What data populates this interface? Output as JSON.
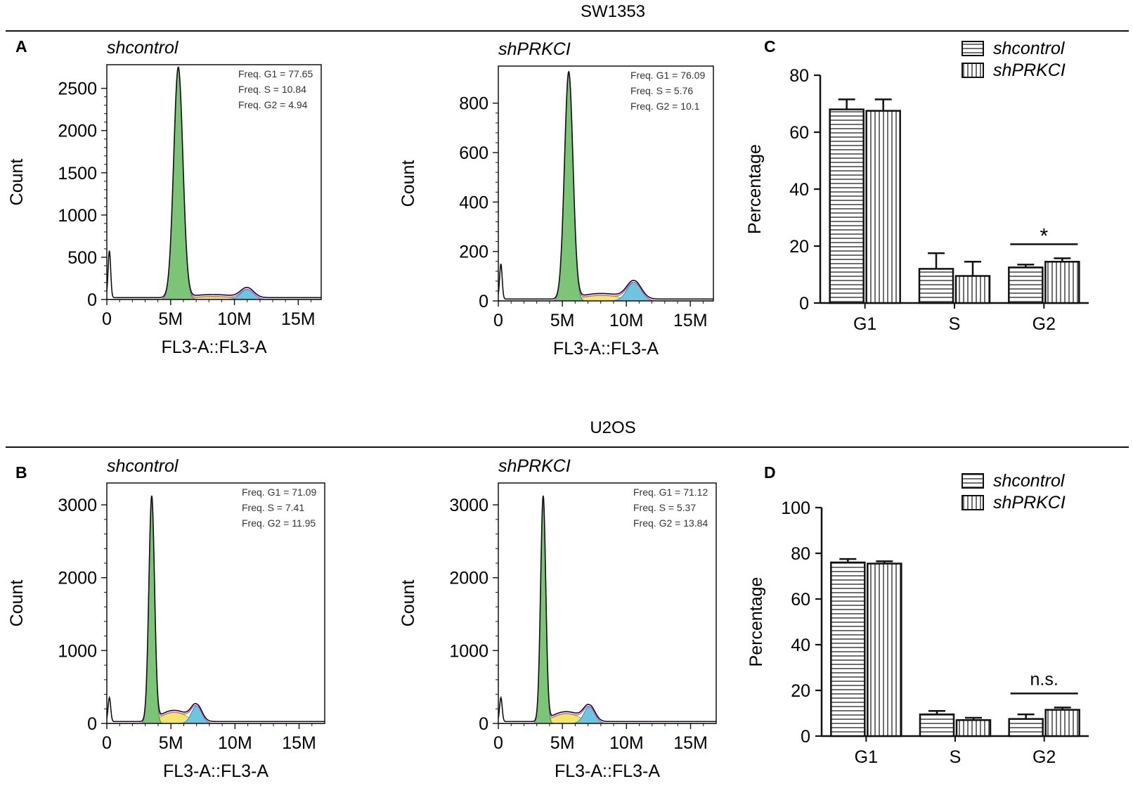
{
  "sections": [
    {
      "title": "SW1353"
    },
    {
      "title": "U2OS"
    }
  ],
  "panel_labels": [
    "A",
    "B",
    "C",
    "D"
  ],
  "colors": {
    "g1_fill": "#7cc576",
    "s_fill": "#f3e46a",
    "g2_fill": "#6cc6e0",
    "fit_line": "#c05ad0",
    "data_line": "#111111",
    "axis": "#111111",
    "freq_text": "#333333"
  },
  "chart_data": [
    {
      "id": "A-left",
      "type": "histogram",
      "title": "shcontrol",
      "xlabel": "FL3-A::FL3-A",
      "ylabel": "Count",
      "x_ticks": [
        "0",
        "5M",
        "10M",
        "15M"
      ],
      "x_range": [
        0,
        16.8
      ],
      "y_ticks": [
        "0",
        "500",
        "1000",
        "1500",
        "2000",
        "2500"
      ],
      "y_range": [
        0,
        2780
      ],
      "freq": [
        "Freq. G1 = 77.65",
        "Freq. S = 10.84",
        "Freq. G2 = 4.94"
      ],
      "debris_peak": 0.2,
      "g1": {
        "mean": 5.6,
        "sd": 0.36,
        "height": 2730
      },
      "g2": {
        "mean": 11.0,
        "sd": 0.5,
        "height": 120
      },
      "s_height": 40
    },
    {
      "id": "A-right",
      "type": "histogram",
      "title": "shPRKCI",
      "xlabel": "FL3-A::FL3-A",
      "ylabel": "Count",
      "x_ticks": [
        "0",
        "5M",
        "10M",
        "15M"
      ],
      "x_range": [
        0,
        16.8
      ],
      "y_ticks": [
        "0",
        "200",
        "400",
        "600",
        "800"
      ],
      "y_range": [
        0,
        950
      ],
      "freq": [
        "Freq. G1 = 76.09",
        "Freq. S = 5.76",
        "Freq. G2 = 10.1"
      ],
      "debris_peak": 0.15,
      "g1": {
        "mean": 5.5,
        "sd": 0.33,
        "height": 920
      },
      "g2": {
        "mean": 10.6,
        "sd": 0.55,
        "height": 75
      },
      "s_height": 25
    },
    {
      "id": "B-left",
      "type": "histogram",
      "title": "shcontrol",
      "xlabel": "FL3-A::FL3-A",
      "ylabel": "Count",
      "x_ticks": [
        "0",
        "5M",
        "10M",
        "15M"
      ],
      "x_range": [
        0,
        17
      ],
      "y_ticks": [
        "0",
        "1000",
        "2000",
        "3000"
      ],
      "y_range": [
        0,
        3300
      ],
      "freq": [
        "Freq. G1 = 71.09",
        "Freq. S = 7.41",
        "Freq. G2 = 11.95"
      ],
      "debris_peak": 0.1,
      "g1": {
        "mean": 3.5,
        "sd": 0.22,
        "height": 3100
      },
      "g2": {
        "mean": 7.0,
        "sd": 0.4,
        "height": 240
      },
      "s_height": 170
    },
    {
      "id": "B-right",
      "type": "histogram",
      "title": "shPRKCI",
      "xlabel": "FL3-A::FL3-A",
      "ylabel": "Count",
      "x_ticks": [
        "0",
        "5M",
        "10M",
        "15M"
      ],
      "x_range": [
        0,
        17
      ],
      "y_ticks": [
        "0",
        "1000",
        "2000",
        "3000"
      ],
      "y_range": [
        0,
        3300
      ],
      "freq": [
        "Freq. G1 = 71.12",
        "Freq. S = 5.37",
        "Freq. G2 = 13.84"
      ],
      "debris_peak": 0.1,
      "g1": {
        "mean": 3.5,
        "sd": 0.2,
        "height": 3100
      },
      "g2": {
        "mean": 7.1,
        "sd": 0.42,
        "height": 230
      },
      "s_height": 150
    },
    {
      "id": "C",
      "type": "bar",
      "categories": [
        "G1",
        "S",
        "G2"
      ],
      "series": [
        {
          "name": "shcontrol",
          "values": [
            68,
            12,
            12.5
          ],
          "errors": [
            3.5,
            5.5,
            1
          ]
        },
        {
          "name": "shPRKCI",
          "values": [
            67.5,
            9.5,
            14.5
          ],
          "errors": [
            4,
            5,
            1.2
          ]
        }
      ],
      "ylabel": "Percentage",
      "ylim": [
        0,
        80
      ],
      "y_ticks": [
        "0",
        "20",
        "40",
        "60",
        "80"
      ],
      "annotation": {
        "text": "*",
        "category": "G2"
      },
      "legend": "top-right"
    },
    {
      "id": "D",
      "type": "bar",
      "categories": [
        "G1",
        "S",
        "G2"
      ],
      "series": [
        {
          "name": "shcontrol",
          "values": [
            76,
            9.5,
            7.5
          ],
          "errors": [
            1.5,
            1.5,
            2
          ]
        },
        {
          "name": "shPRKCI",
          "values": [
            75.5,
            7,
            11.5
          ],
          "errors": [
            1,
            1,
            1
          ]
        }
      ],
      "ylabel": "Percentage",
      "ylim": [
        0,
        100
      ],
      "y_ticks": [
        "0",
        "20",
        "40",
        "60",
        "80",
        "100"
      ],
      "annotation": {
        "text": "n.s.",
        "category": "G2"
      },
      "legend": "top-right"
    }
  ]
}
